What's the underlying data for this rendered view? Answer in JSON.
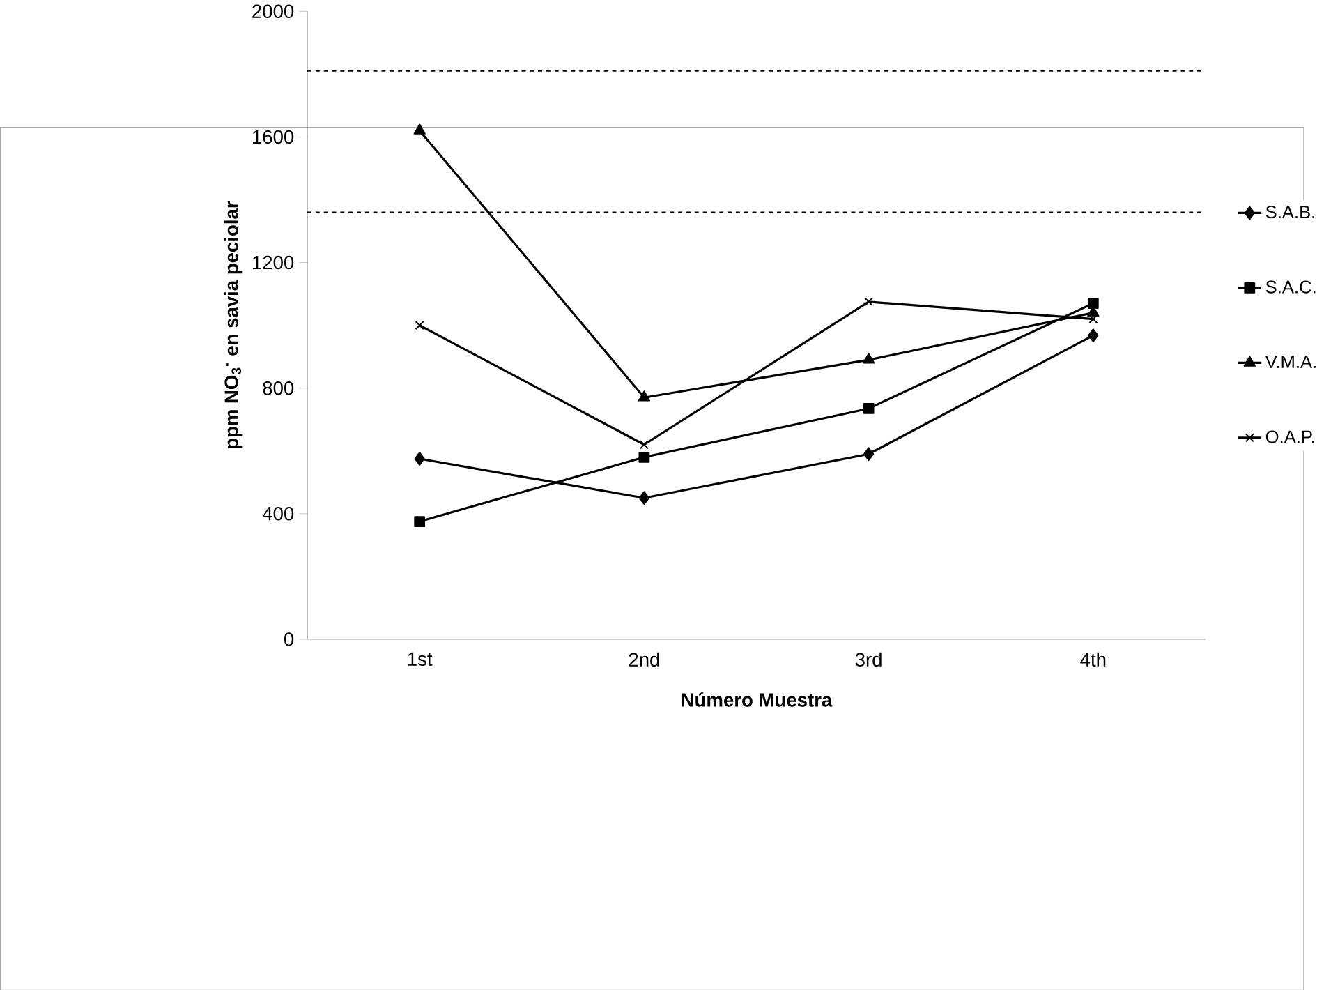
{
  "chart_data": {
    "type": "line",
    "xlabel": "Número Muestra",
    "ylabel": "ppm NO$_{3}$$^{-}$ en savia peciolar",
    "categories": [
      "1st",
      "2nd",
      "3rd",
      "4th"
    ],
    "series": [
      {
        "name": "S.A.B.",
        "color": "#000000",
        "marker": "diamond",
        "values": [
          575,
          450,
          590,
          968
        ]
      },
      {
        "name": "S.A.C.",
        "color": "#000000",
        "marker": "square",
        "values": [
          375,
          580,
          735,
          1070
        ]
      },
      {
        "name": "V.M.A.",
        "color": "#000000",
        "marker": "triangle",
        "values": [
          1620,
          770,
          890,
          1040
        ]
      },
      {
        "name": "O.A.P.",
        "color": "#000000",
        "marker": "cross",
        "values": [
          1000,
          620,
          1075,
          1020
        ]
      }
    ],
    "ylim": [
      0,
      2000
    ],
    "yticks": [
      0,
      400,
      800,
      1200,
      1600,
      2000
    ],
    "ref_lines": [
      {
        "axis": "y",
        "value": 1810,
        "color": "#000000",
        "line_style": "dashed"
      },
      {
        "axis": "y",
        "value": 1360,
        "color": "#000000",
        "line_style": "dashed"
      }
    ],
    "grid": false,
    "legend": "right",
    "line_style": "solid"
  }
}
